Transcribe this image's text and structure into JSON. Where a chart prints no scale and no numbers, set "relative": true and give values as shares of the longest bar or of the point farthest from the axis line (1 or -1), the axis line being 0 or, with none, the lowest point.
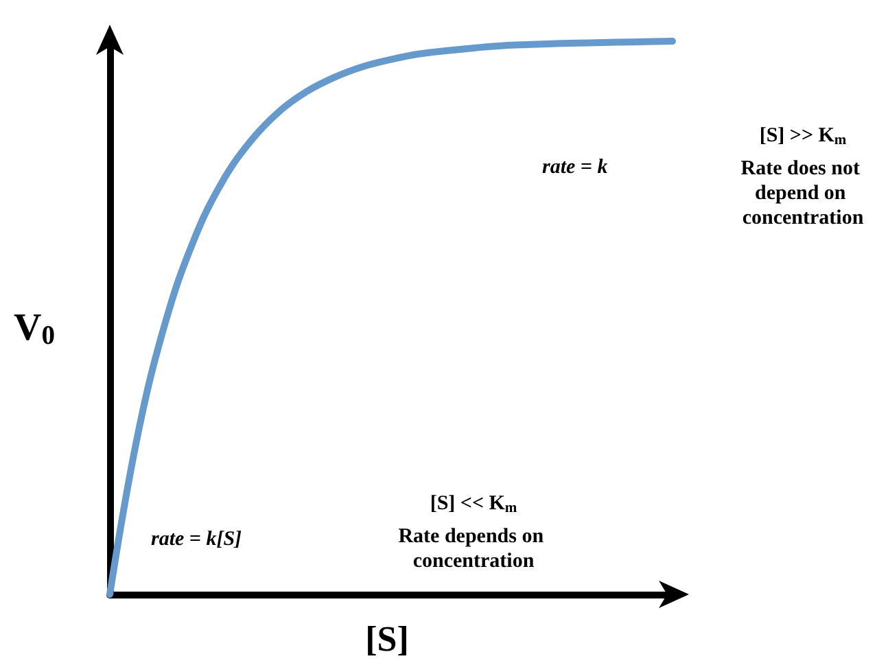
{
  "chart_data": {
    "type": "line",
    "relative": true,
    "xlabel": "[S]",
    "ylabel": "V$_{0}$",
    "categories": [
      null,
      null,
      null,
      null,
      null,
      null,
      null,
      null,
      null,
      null,
      null,
      null,
      null,
      null,
      null,
      null,
      null,
      null,
      null,
      null,
      null
    ],
    "series": [
      {
        "color": "#6699cc",
        "values": [
          0,
          0.29,
          0.496,
          0.642,
          0.746,
          0.819,
          0.872,
          0.909,
          0.935,
          0.954,
          0.967,
          0.977,
          0.983,
          0.988,
          0.992,
          0.994,
          0.996,
          0.997,
          0.998,
          0.999,
          1
        ]
      }
    ],
    "marker": "none",
    "line_style": "solid",
    "annotations": [
      "rate = k[S]",
      "rate = k",
      "[S] << K$_{m}$",
      "Rate depends on concentration",
      "[S] >> K$_{m}$",
      "Rate does not depend on concentration"
    ]
  }
}
